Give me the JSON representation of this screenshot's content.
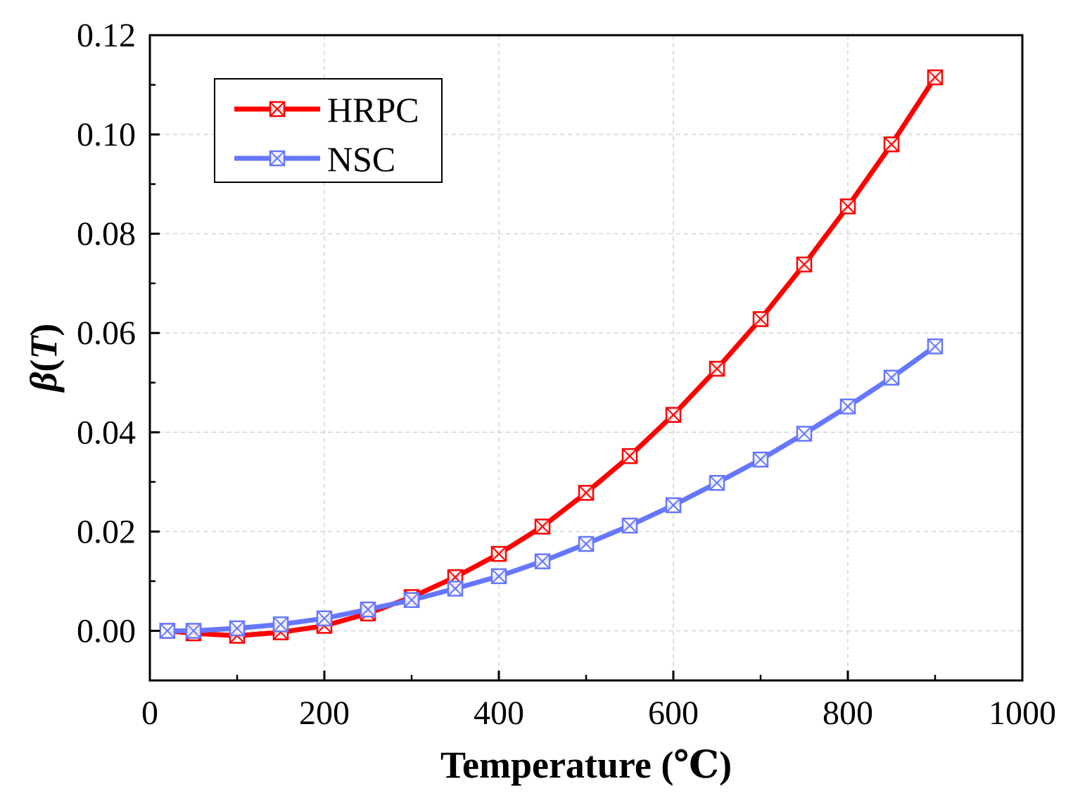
{
  "chart_data": {
    "type": "line",
    "title": "",
    "xlabel": "Temperature (℃)",
    "ylabel_symbol": "β",
    "ylabel_arg": "T",
    "xlim": [
      0,
      1000
    ],
    "ylim": [
      -0.01,
      0.12
    ],
    "xticks": [
      0,
      200,
      400,
      600,
      800,
      1000
    ],
    "xtick_labels": [
      "0",
      "200",
      "400",
      "600",
      "800",
      "1000"
    ],
    "yticks": [
      0.0,
      0.02,
      0.04,
      0.06,
      0.08,
      0.1,
      0.12
    ],
    "ytick_labels": [
      "0.00",
      "0.02",
      "0.04",
      "0.06",
      "0.08",
      "0.10",
      "0.12"
    ],
    "grid": true,
    "legend_position": "top-left",
    "series": [
      {
        "name": "HRPC",
        "color": "#ff0000",
        "x": [
          20,
          50,
          100,
          150,
          200,
          250,
          300,
          350,
          400,
          450,
          500,
          550,
          600,
          650,
          700,
          750,
          800,
          850,
          900
        ],
        "values": [
          0.0,
          -0.0005,
          -0.001,
          -0.0003,
          0.001,
          0.0035,
          0.0068,
          0.0108,
          0.0155,
          0.021,
          0.0278,
          0.0352,
          0.0435,
          0.0528,
          0.0628,
          0.0738,
          0.0855,
          0.098,
          0.1115
        ]
      },
      {
        "name": "NSC",
        "color": "#6677ff",
        "x": [
          20,
          50,
          100,
          150,
          200,
          250,
          300,
          350,
          400,
          450,
          500,
          550,
          600,
          650,
          700,
          750,
          800,
          850,
          900
        ],
        "values": [
          0.0,
          0.0,
          0.0005,
          0.0013,
          0.0025,
          0.0043,
          0.0062,
          0.0085,
          0.011,
          0.014,
          0.0175,
          0.0212,
          0.0253,
          0.0298,
          0.0345,
          0.0397,
          0.0452,
          0.051,
          0.0573
        ]
      }
    ]
  }
}
